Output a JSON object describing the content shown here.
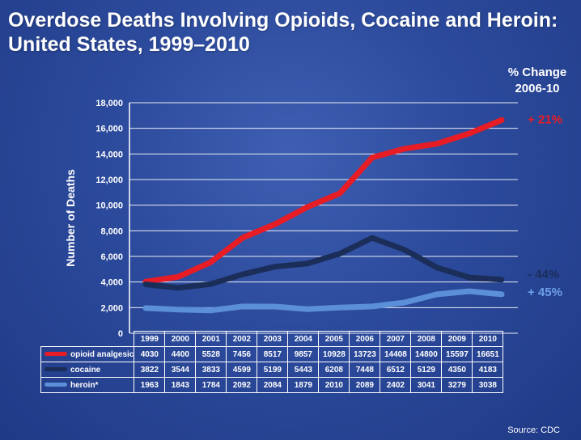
{
  "title_line1": "Overdose Deaths Involving Opioids, Cocaine and Heroin:",
  "title_line2": "United States, 1999–2010",
  "pct_change_header_line1": "% Change",
  "pct_change_header_line2": "2006-10",
  "source": "Source: CDC",
  "colors": {
    "opioid": "#e81c24",
    "cocaine": "#1b2e5a",
    "heroin": "#5b8fd8"
  },
  "chart_data": {
    "type": "line",
    "ylabel": "Number of Deaths",
    "ylim": [
      0,
      18000
    ],
    "yticks": [
      "0",
      "2,000",
      "4,000",
      "6,000",
      "8,000",
      "10,000",
      "12,000",
      "14,000",
      "16,000",
      "18,000"
    ],
    "categories": [
      "1999",
      "2000",
      "2001",
      "2002",
      "2003",
      "2004",
      "2005",
      "2006",
      "2007",
      "2008",
      "2009",
      "2010"
    ],
    "grid": true,
    "legend": "table-below",
    "series": [
      {
        "name": "opioid analgesic",
        "color": "#e81c24",
        "change": "+ 21%",
        "values": [
          4030,
          4400,
          5528,
          7456,
          8517,
          9857,
          10928,
          13723,
          14408,
          14800,
          15597,
          16651
        ]
      },
      {
        "name": "cocaine",
        "color": "#1b2e5a",
        "change": "- 44%",
        "values": [
          3822,
          3544,
          3833,
          4599,
          5199,
          5443,
          6208,
          7448,
          6512,
          5129,
          4350,
          4183
        ]
      },
      {
        "name": "heroin*",
        "color": "#5b8fd8",
        "change": "+ 45%",
        "values": [
          1963,
          1843,
          1784,
          2092,
          2084,
          1879,
          2010,
          2089,
          2402,
          3041,
          3279,
          3038
        ]
      }
    ]
  }
}
